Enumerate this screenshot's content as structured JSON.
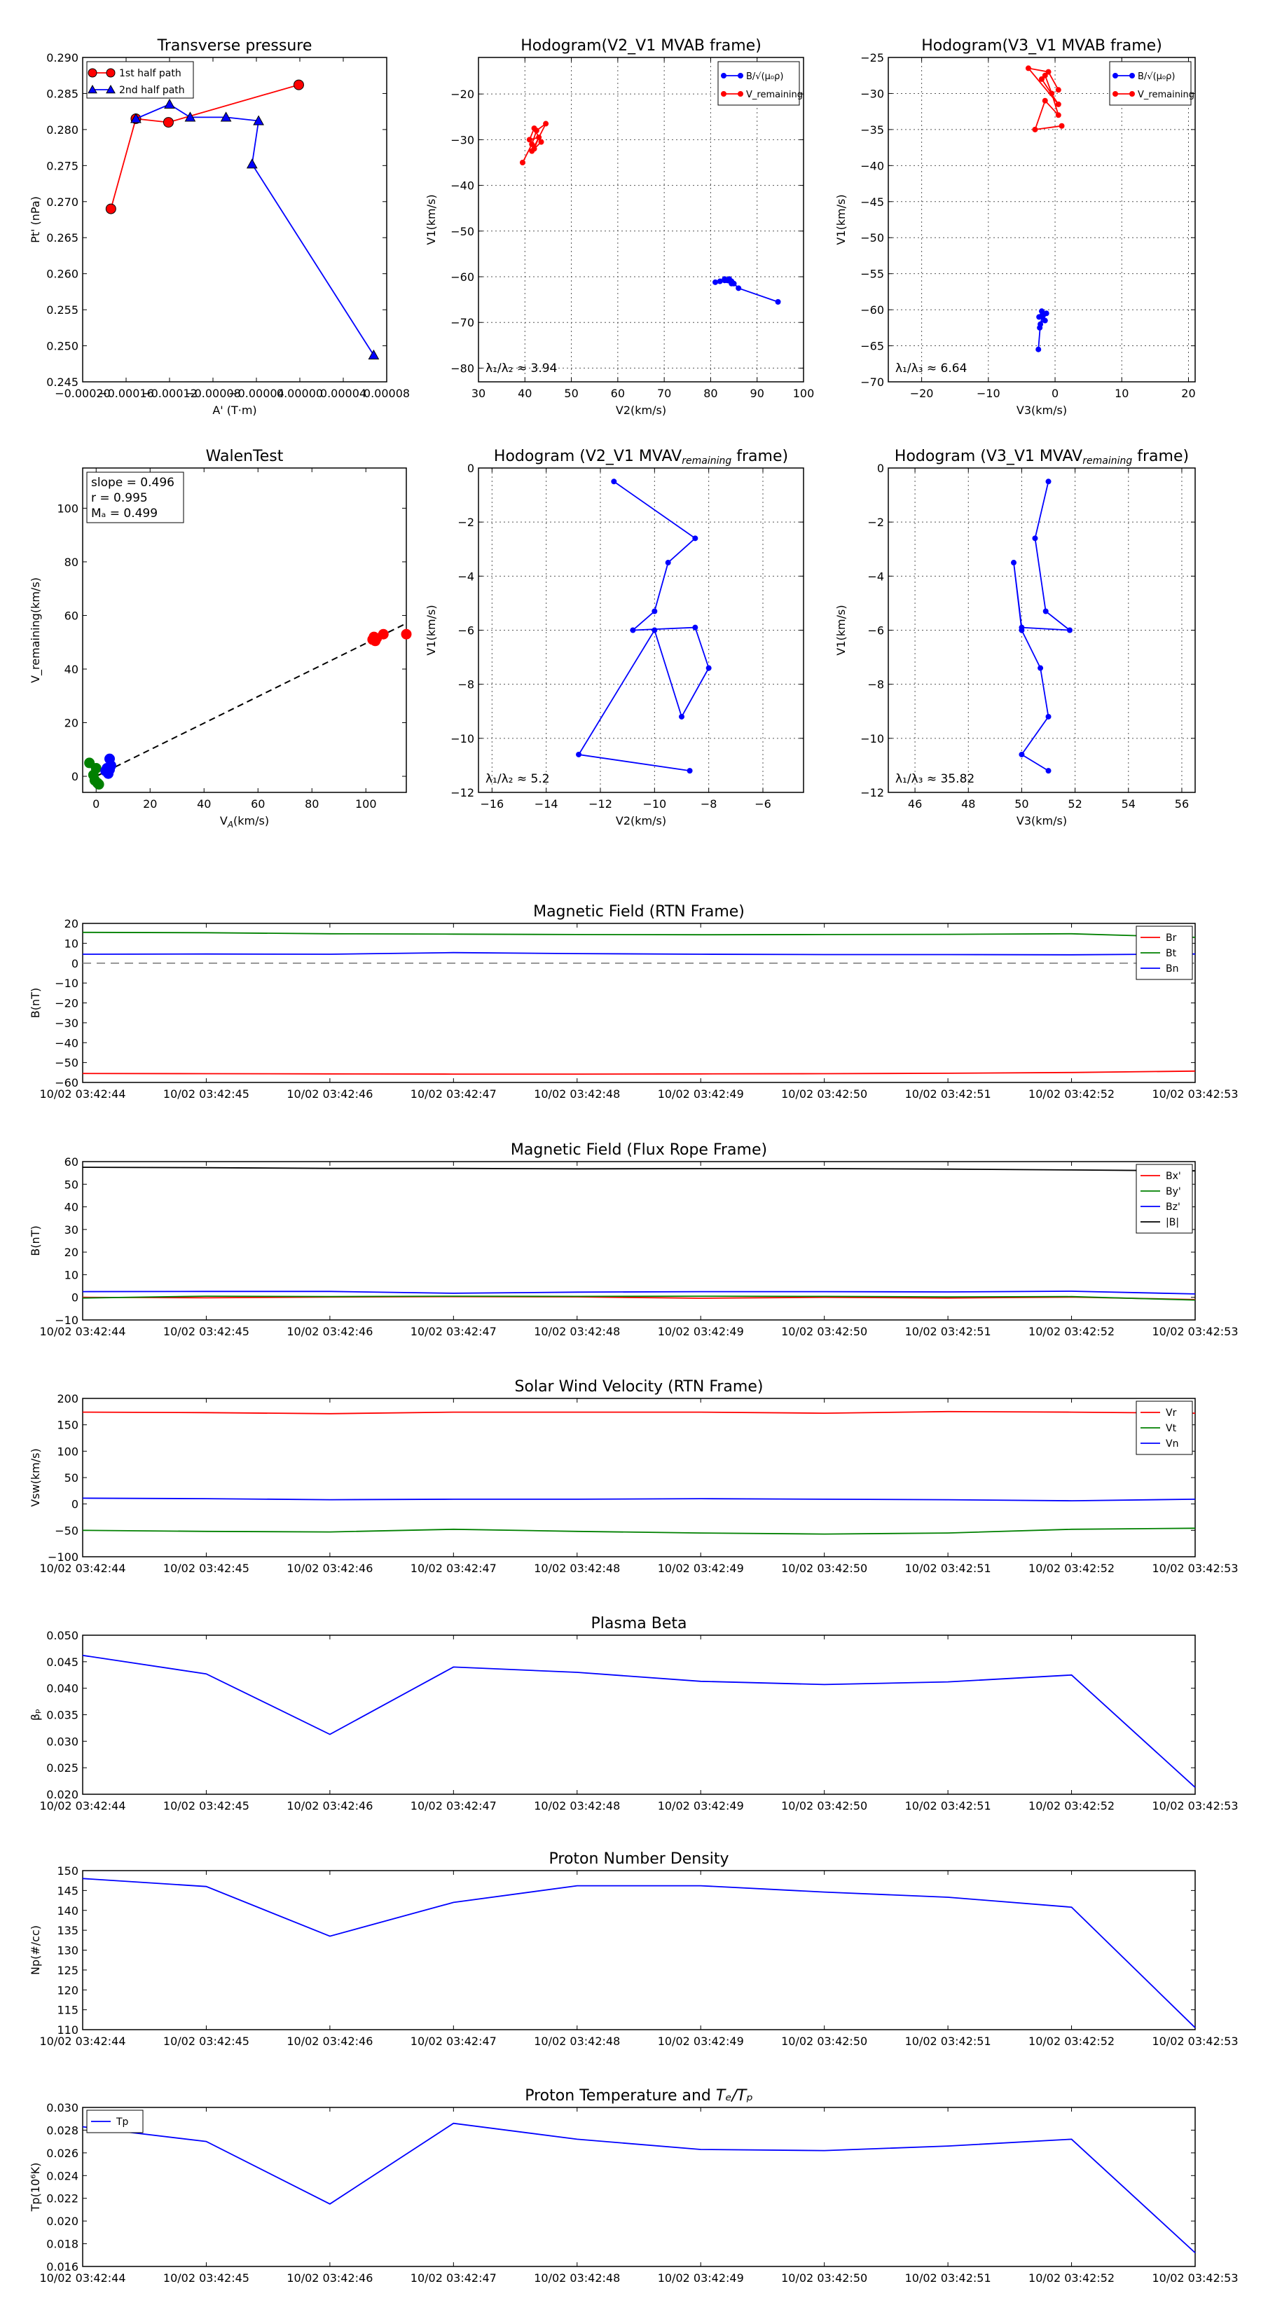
{
  "figure": {
    "background": "#ffffff"
  },
  "chart_data": [
    {
      "id": "pt",
      "type": "line",
      "title": "Transverse pressure",
      "xlabel": "A' (T·m)",
      "ylabel": "Pt' (nPa)",
      "xlim": [
        -0.0002,
        8e-05
      ],
      "ylim": [
        0.245,
        0.29
      ],
      "xticks": [
        -0.0002,
        -0.00016,
        -0.00012,
        -8e-05,
        -4e-05,
        0.0,
        4e-05,
        8e-05
      ],
      "xtick_labels": [
        "−0.00020",
        "−0.00016",
        "−0.00012",
        "−0.00008",
        "−0.00004",
        "0.00000",
        "0.00004",
        "0.00008"
      ],
      "yticks": [
        0.245,
        0.25,
        0.255,
        0.26,
        0.265,
        0.27,
        0.275,
        0.28,
        0.285,
        0.29
      ],
      "ytick_labels": [
        "0.245",
        "0.250",
        "0.255",
        "0.260",
        "0.265",
        "0.270",
        "0.275",
        "0.280",
        "0.285",
        "0.290"
      ],
      "legend": {
        "placement": "top-left",
        "entries": [
          "1st half path",
          "2nd half path"
        ]
      },
      "series": [
        {
          "name": "1st half path",
          "color": "#ff0000",
          "marker": "circle",
          "x": [
            -1e-06,
            -0.000121,
            -0.000151,
            -0.000174
          ],
          "y": [
            0.2862,
            0.281,
            0.2815,
            0.269
          ]
        },
        {
          "name": "2nd half path",
          "color": "#0000ff",
          "marker": "triangle",
          "x": [
            -0.000151,
            -0.00012,
            -0.000101,
            -6.8e-05,
            -3.8e-05,
            -4.4e-05,
            6.8e-05
          ],
          "y": [
            0.2815,
            0.2835,
            0.2817,
            0.2817,
            0.2812,
            0.2752,
            0.2487
          ]
        }
      ]
    },
    {
      "id": "h1",
      "type": "line",
      "title": "Hodogram(V2_V1 MVAB frame)",
      "xlabel": "V2(km/s)",
      "ylabel": "V1(km/s)",
      "xlim": [
        30,
        100
      ],
      "ylim": [
        -83,
        -12
      ],
      "xticks": [
        30,
        40,
        50,
        60,
        70,
        80,
        90,
        100
      ],
      "xtick_labels": [
        "30",
        "40",
        "50",
        "60",
        "70",
        "80",
        "90",
        "100"
      ],
      "yticks": [
        -80,
        -70,
        -60,
        -50,
        -40,
        -30,
        -20
      ],
      "ytick_labels": [
        "−80",
        "−70",
        "−60",
        "−50",
        "−40",
        "−30",
        "−20"
      ],
      "annotation": "λ₁/λ₂ ≈ 3.94",
      "legend": {
        "placement": "top-right",
        "entries": [
          "B/√(μ₀ρ)",
          "V_remaining"
        ]
      },
      "series": [
        {
          "name": "B/sqrt(mu0 rho)",
          "color": "#0000ff",
          "marker": "dot",
          "x": [
            94.5,
            86,
            84.5,
            83,
            85,
            82,
            84,
            81,
            83,
            84.5
          ],
          "y": [
            -65.5,
            -62.5,
            -61,
            -60.5,
            -61.5,
            -61,
            -60.5,
            -61.2,
            -60.8,
            -61.5
          ]
        },
        {
          "name": "V_remaining",
          "color": "#ff0000",
          "marker": "dot",
          "x": [
            39.5,
            41.5,
            42.5,
            44.5,
            41.5,
            43.5,
            42,
            41,
            43,
            42
          ],
          "y": [
            -35,
            -31,
            -28,
            -26.5,
            -32.5,
            -30.5,
            -27.5,
            -30,
            -29.5,
            -32
          ]
        }
      ]
    },
    {
      "id": "h2",
      "type": "line",
      "title": "Hodogram(V3_V1 MVAB frame)",
      "xlabel": "V3(km/s)",
      "ylabel": "V1(km/s)",
      "xlim": [
        -25,
        21
      ],
      "ylim": [
        -70,
        -25
      ],
      "xticks": [
        -20,
        -10,
        0,
        10,
        20
      ],
      "xtick_labels": [
        "−20",
        "−10",
        "0",
        "10",
        "20"
      ],
      "yticks": [
        -70,
        -65,
        -60,
        -55,
        -50,
        -45,
        -40,
        -35,
        -30,
        -25
      ],
      "ytick_labels": [
        "−70",
        "−65",
        "−60",
        "−55",
        "−50",
        "−45",
        "−40",
        "−35",
        "−30",
        "−25"
      ],
      "annotation": "λ₁/λ₃ ≈ 6.64",
      "legend": {
        "placement": "top-right",
        "entries": [
          "B/√(μ₀ρ)",
          "V_remaining"
        ]
      },
      "series": [
        {
          "name": "B/sqrt(mu0 rho)",
          "color": "#0000ff",
          "marker": "dot",
          "x": [
            -2.5,
            -2.2,
            -1.8,
            -1.5,
            -2.4,
            -2.0,
            -1.3,
            -2.3,
            -1.9
          ],
          "y": [
            -65.5,
            -62,
            -60.5,
            -61.5,
            -61,
            -60.2,
            -60.5,
            -62.5,
            -61
          ]
        },
        {
          "name": "V_remaining",
          "color": "#ff0000",
          "marker": "dot",
          "x": [
            1,
            -3,
            -1.5,
            0.5,
            -0.5,
            -1.5,
            -2,
            0.5,
            -4,
            -1,
            0.5
          ],
          "y": [
            -34.5,
            -35,
            -31,
            -33,
            -30,
            -27.5,
            -28,
            -31.5,
            -26.5,
            -27,
            -29.5
          ]
        }
      ]
    },
    {
      "id": "walen",
      "type": "scatter",
      "title": "WalenTest",
      "xlabel": "Vₐ(km/s)",
      "xlabel_main": "V",
      "xlabel_sub": "A",
      "xlabel_rest": "(km/s)",
      "ylabel": "V_remaining(km/s)",
      "xlim": [
        -5,
        115
      ],
      "ylim": [
        -6,
        115
      ],
      "xticks": [
        0,
        20,
        40,
        60,
        80,
        100
      ],
      "xtick_labels": [
        "0",
        "20",
        "40",
        "60",
        "80",
        "100"
      ],
      "yticks": [
        0,
        20,
        40,
        60,
        80,
        100
      ],
      "ytick_labels": [
        "0",
        "20",
        "40",
        "60",
        "80",
        "100"
      ],
      "stats": {
        "slope": "slope = 0.496",
        "r": "r = 0.995",
        "ma": "Mₐ = 0.499"
      },
      "fit_line": {
        "slope": 0.496,
        "intercept": 0
      },
      "groups": [
        {
          "color": "#ff0000",
          "x": [
            102.5,
            103,
            104,
            106.5,
            103.5,
            115
          ],
          "y": [
            51,
            52,
            51.5,
            53,
            50.5,
            53
          ]
        },
        {
          "color": "#008000",
          "x": [
            -2.5,
            0,
            1,
            -0.5,
            0.5,
            -1
          ],
          "y": [
            5,
            3,
            -3,
            -1.5,
            -2.5,
            0.5
          ]
        },
        {
          "color": "#0000ff",
          "x": [
            4.5,
            5,
            4,
            5.5,
            3.5,
            5
          ],
          "y": [
            1,
            6.5,
            3,
            4,
            2,
            2.5
          ]
        }
      ]
    },
    {
      "id": "h3",
      "type": "line",
      "title": "Hodogram (V2_V1 MVAV_remaining frame)",
      "title_main": "Hodogram (V2_V1 MVAV",
      "title_sub": "remaining",
      "title_rest": " frame)",
      "xlabel": "V2(km/s)",
      "ylabel": "V1(km/s)",
      "xlim": [
        -16.5,
        -4.5
      ],
      "ylim": [
        -12,
        0
      ],
      "xticks": [
        -16,
        -14,
        -12,
        -10,
        -8,
        -6
      ],
      "xtick_labels": [
        "−16",
        "−14",
        "−12",
        "−10",
        "−8",
        "−6"
      ],
      "yticks": [
        -12,
        -10,
        -8,
        -6,
        -4,
        -2,
        0
      ],
      "ytick_labels": [
        "−12",
        "−10",
        "−8",
        "−6",
        "−4",
        "−2",
        "0"
      ],
      "annotation": "λ₁/λ₂ ≈ 5.2",
      "series": [
        {
          "name": "V",
          "color": "#0000ff",
          "marker": "dot",
          "x": [
            -11.5,
            -8.5,
            -9.5,
            -10.0,
            -10.8,
            -8.5,
            -8.0,
            -9.0,
            -10.0,
            -12.8,
            -8.7
          ],
          "y": [
            -0.5,
            -2.6,
            -3.5,
            -5.3,
            -6.0,
            -5.9,
            -7.4,
            -9.2,
            -6.0,
            -10.6,
            -11.2
          ]
        }
      ]
    },
    {
      "id": "h4",
      "type": "line",
      "title": "Hodogram (V3_V1 MVAV_remaining frame)",
      "title_main": "Hodogram (V3_V1 MVAV",
      "title_sub": "remaining",
      "title_rest": " frame)",
      "xlabel": "V3(km/s)",
      "ylabel": "V1(km/s)",
      "xlim": [
        45,
        56.5
      ],
      "ylim": [
        -12,
        0
      ],
      "xticks": [
        46,
        48,
        50,
        52,
        54,
        56
      ],
      "xtick_labels": [
        "46",
        "48",
        "50",
        "52",
        "54",
        "56"
      ],
      "yticks": [
        -12,
        -10,
        -8,
        -6,
        -4,
        -2,
        0
      ],
      "ytick_labels": [
        "−12",
        "−10",
        "−8",
        "−6",
        "−4",
        "−2",
        "0"
      ],
      "annotation": "λ₁/λ₃ ≈ 35.82",
      "series": [
        {
          "name": "V",
          "color": "#0000ff",
          "marker": "dot",
          "x": [
            51.0,
            50.5,
            50.9,
            51.8,
            50.0,
            49.7,
            50.0,
            50.7,
            51.0,
            50.0,
            51.0
          ],
          "y": [
            -0.5,
            -2.6,
            -5.3,
            -6.0,
            -5.9,
            -3.5,
            -6.0,
            -7.4,
            -9.2,
            -10.6,
            -11.2
          ]
        }
      ]
    },
    {
      "id": "bmag",
      "type": "line",
      "title": "Magnetic Field (RTN Frame)",
      "ylabel": "B(nT)",
      "ylim": [
        -60,
        20
      ],
      "yticks": [
        -60,
        -50,
        -40,
        -30,
        -20,
        -10,
        0,
        10,
        20
      ],
      "ytick_labels": [
        "−60",
        "−50",
        "−40",
        "−30",
        "−20",
        "−10",
        "0",
        "10",
        "20"
      ],
      "zero_line": true,
      "legend": {
        "placement": "top-right",
        "entries": [
          "Br",
          "Bt",
          "Bn"
        ]
      },
      "series": [
        {
          "name": "Br",
          "color": "#ff0000",
          "values": [
            -55.5,
            -55.6,
            -55.7,
            -55.8,
            -55.8,
            -55.7,
            -55.6,
            -55.4,
            -55.0,
            -54.3
          ]
        },
        {
          "name": "Bt",
          "color": "#008000",
          "values": [
            15.5,
            15.3,
            14.8,
            14.6,
            14.4,
            14.3,
            14.4,
            14.5,
            14.8,
            13.0
          ]
        },
        {
          "name": "Bn",
          "color": "#0000ff",
          "values": [
            4.5,
            4.6,
            4.5,
            5.3,
            4.8,
            4.5,
            4.3,
            4.3,
            4.2,
            4.6
          ]
        }
      ]
    },
    {
      "id": "bfr",
      "type": "line",
      "title": "Magnetic Field (Flux Rope Frame)",
      "ylabel": "B(nT)",
      "ylim": [
        -10,
        60
      ],
      "yticks": [
        -10,
        0,
        10,
        20,
        30,
        40,
        50,
        60
      ],
      "ytick_labels": [
        "−10",
        "0",
        "10",
        "20",
        "30",
        "40",
        "50",
        "60"
      ],
      "legend": {
        "placement": "top-right",
        "entries": [
          "Bx'",
          "By'",
          "Bz'",
          "|B|"
        ]
      },
      "series": [
        {
          "name": "Bx'",
          "color": "#ff0000",
          "values": [
            0.0,
            -0.2,
            0.1,
            0.3,
            0.2,
            -0.4,
            0.0,
            -0.3,
            0.1,
            -1.0
          ]
        },
        {
          "name": "By'",
          "color": "#008000",
          "values": [
            -0.3,
            0.5,
            0.3,
            0.5,
            0.4,
            0.5,
            0.4,
            0.2,
            0.3,
            -1.2
          ]
        },
        {
          "name": "Bz'",
          "color": "#0000ff",
          "values": [
            2.5,
            2.6,
            2.6,
            1.8,
            2.3,
            2.5,
            2.5,
            2.4,
            2.7,
            1.5
          ]
        },
        {
          "name": "|B|",
          "color": "#000000",
          "values": [
            57.5,
            57.3,
            57.0,
            57.0,
            56.8,
            56.9,
            56.9,
            56.7,
            56.3,
            55.9
          ]
        }
      ]
    },
    {
      "id": "vsw",
      "type": "line",
      "title": "Solar Wind Velocity (RTN Frame)",
      "ylabel": "Vsw(km/s)",
      "ylim": [
        -100,
        200
      ],
      "yticks": [
        -100,
        -50,
        0,
        50,
        100,
        150,
        200
      ],
      "ytick_labels": [
        "−100",
        "−50",
        "0",
        "50",
        "100",
        "150",
        "200"
      ],
      "legend": {
        "placement": "top-right",
        "entries": [
          "Vr",
          "Vt",
          "Vn"
        ]
      },
      "series": [
        {
          "name": "Vr",
          "color": "#ff0000",
          "values": [
            174,
            173,
            171,
            174,
            174,
            174,
            172,
            175,
            174,
            172
          ]
        },
        {
          "name": "Vt",
          "color": "#008000",
          "values": [
            -50,
            -52,
            -53,
            -48,
            -52,
            -55,
            -57,
            -55,
            -48,
            -46
          ]
        },
        {
          "name": "Vn",
          "color": "#0000ff",
          "values": [
            11,
            10,
            8,
            9,
            9,
            10,
            9,
            8,
            6,
            9
          ]
        }
      ]
    },
    {
      "id": "beta",
      "type": "line",
      "title": "Plasma Beta",
      "ylabel": "βₚ",
      "ylim": [
        0.02,
        0.05
      ],
      "yticks": [
        0.02,
        0.025,
        0.03,
        0.035,
        0.04,
        0.045,
        0.05
      ],
      "ytick_labels": [
        "0.020",
        "0.025",
        "0.030",
        "0.035",
        "0.040",
        "0.045",
        "0.050"
      ],
      "series": [
        {
          "name": "beta",
          "color": "#0000ff",
          "values": [
            0.0462,
            0.0427,
            0.0313,
            0.044,
            0.043,
            0.0413,
            0.0407,
            0.0412,
            0.0425,
            0.0213
          ]
        }
      ]
    },
    {
      "id": "np",
      "type": "line",
      "title": "Proton Number Density",
      "ylabel": "Np(#/cc)",
      "ylim": [
        110,
        150
      ],
      "yticks": [
        110,
        115,
        120,
        125,
        130,
        135,
        140,
        145,
        150
      ],
      "ytick_labels": [
        "110",
        "115",
        "120",
        "125",
        "130",
        "135",
        "140",
        "145",
        "150"
      ],
      "series": [
        {
          "name": "Np",
          "color": "#0000ff",
          "values": [
            148,
            146,
            133.5,
            142,
            146.2,
            146.2,
            144.6,
            143.3,
            140.8,
            110.5
          ]
        }
      ]
    },
    {
      "id": "tp",
      "type": "line",
      "title": "Proton Temperature and Tₑ/Tₚ",
      "title_main": "Proton Temperature and ",
      "title_tail": "Tₑ/Tₚ",
      "ylabel": "Tp(10⁶K)",
      "ylim": [
        0.016,
        0.03
      ],
      "yticks": [
        0.016,
        0.018,
        0.02,
        0.022,
        0.024,
        0.026,
        0.028,
        0.03
      ],
      "ytick_labels": [
        "0.016",
        "0.018",
        "0.020",
        "0.022",
        "0.024",
        "0.026",
        "0.028",
        "0.030"
      ],
      "legend": {
        "placement": "top-left",
        "entries": [
          "Tp"
        ]
      },
      "series": [
        {
          "name": "Tp",
          "color": "#0000ff",
          "values": [
            0.0283,
            0.027,
            0.0215,
            0.0286,
            0.0272,
            0.0263,
            0.0262,
            0.0266,
            0.0272,
            0.0172
          ]
        }
      ]
    }
  ],
  "time_axis": {
    "labels": [
      "10/02 03:42:44",
      "10/02 03:42:45",
      "10/02 03:42:46",
      "10/02 03:42:47",
      "10/02 03:42:48",
      "10/02 03:42:49",
      "10/02 03:42:50",
      "10/02 03:42:51",
      "10/02 03:42:52",
      "10/02 03:42:53"
    ]
  }
}
